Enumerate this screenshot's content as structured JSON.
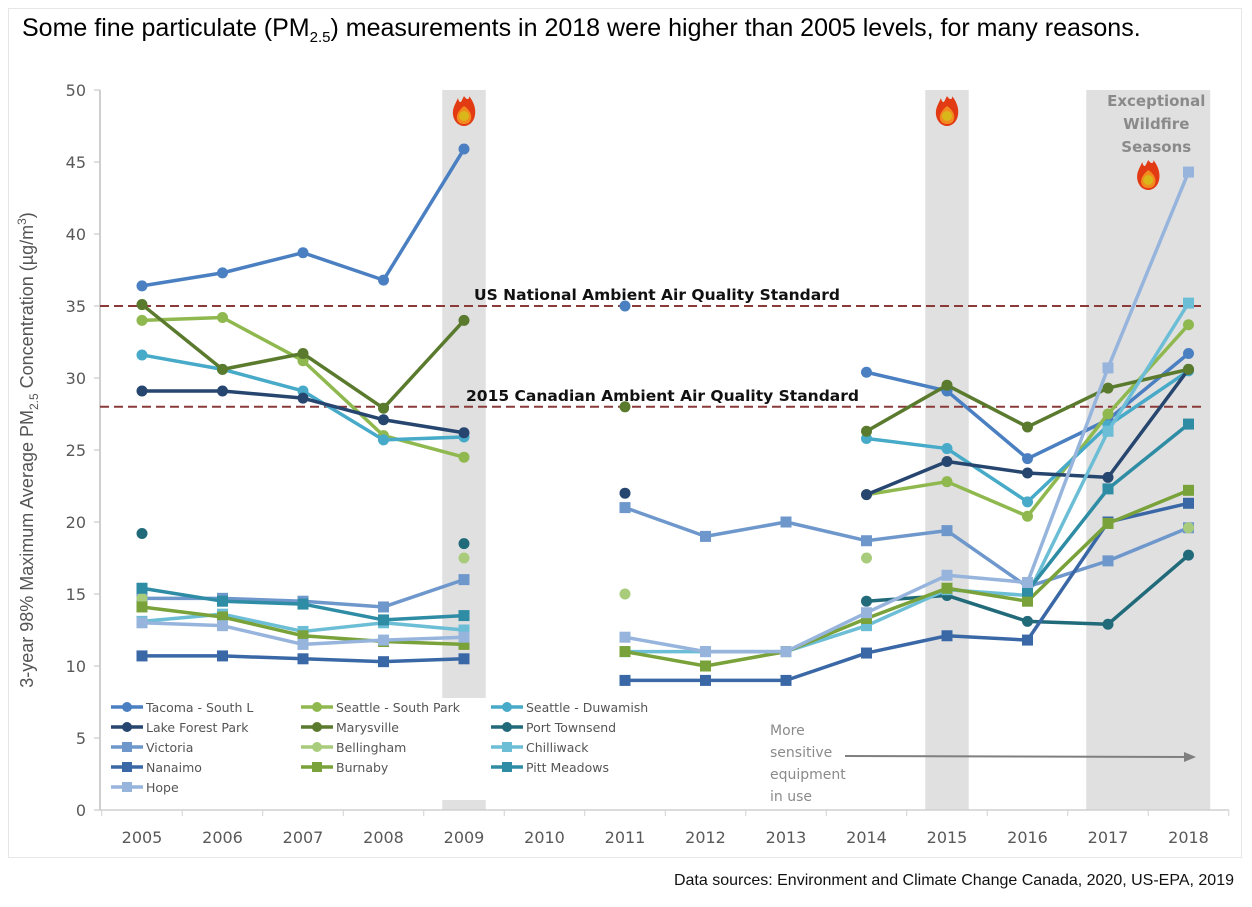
{
  "title": {
    "pre": "Some fine particulate (PM",
    "sub": "2.5",
    "post": ") measurements in 2018 were higher than 2005 levels, for many reasons."
  },
  "source": "Data sources: Environment and Climate Change Canada, 2020, US-EPA, 2019",
  "chart_data": {
    "type": "line",
    "title": "Some fine particulate (PM2.5) measurements in 2018 were higher than 2005 levels, for many reasons.",
    "xlabel": "",
    "ylabel": "3-year 98% Maximum Average PM2.5 Concentration (µg/m³)",
    "ylabel_parts": {
      "pre": "3-year 98% Maximum Average PM",
      "sub": "2.5",
      "mid": " Concentration  (µg/m",
      "sup": "3",
      "post": ")"
    },
    "x": [
      "2005",
      "2006",
      "2007",
      "2008",
      "2009",
      "2010",
      "2011",
      "2012",
      "2013",
      "2014",
      "2015",
      "2016",
      "2017",
      "2018"
    ],
    "ylim": [
      0,
      50
    ],
    "yticks": [
      0,
      5,
      10,
      15,
      20,
      25,
      30,
      35,
      40,
      45,
      50
    ],
    "grid": false,
    "legend_position": "bottom-left",
    "reference_lines": [
      {
        "label": "US National Ambient Air Quality Standard",
        "value": 35,
        "color": "#8b3a3a"
      },
      {
        "label": "2015 Canadian Ambient Air Quality Standard",
        "value": 28,
        "color": "#8b3a3a"
      }
    ],
    "shaded_periods": [
      {
        "years": [
          "2009"
        ],
        "label": "",
        "icon": "fire-icon"
      },
      {
        "years": [
          "2015"
        ],
        "label": "",
        "icon": "fire-icon"
      },
      {
        "years": [
          "2017",
          "2018"
        ],
        "label": "Exceptional Wildfire Seasons",
        "icon": "fire-icon"
      }
    ],
    "annotations": [
      {
        "text": [
          "More",
          "sensitive",
          "equipment",
          " in use"
        ],
        "arrow_from": "2014",
        "arrow_to": "2018"
      }
    ],
    "series": [
      {
        "name": "Tacoma - South L",
        "marker": "circle",
        "color": "#4a7fc1",
        "values": [
          36.4,
          37.3,
          38.7,
          36.8,
          45.9,
          null,
          35.0,
          null,
          null,
          30.4,
          29.1,
          24.4,
          27.1,
          31.7
        ]
      },
      {
        "name": "Seattle - South Park",
        "marker": "circle",
        "color": "#8fb84e",
        "values": [
          34.0,
          34.2,
          31.2,
          26.0,
          24.5,
          null,
          null,
          null,
          null,
          21.9,
          22.8,
          20.4,
          27.5,
          33.7
        ]
      },
      {
        "name": "Seattle - Duwamish",
        "marker": "circle",
        "color": "#46aac8",
        "values": [
          31.6,
          30.6,
          29.1,
          25.7,
          25.9,
          null,
          null,
          null,
          null,
          25.8,
          25.1,
          21.4,
          26.7,
          30.5
        ]
      },
      {
        "name": "Lake Forest Park",
        "marker": "circle",
        "color": "#27466f",
        "values": [
          29.1,
          29.1,
          28.6,
          27.1,
          26.2,
          null,
          22.0,
          null,
          null,
          21.9,
          24.2,
          23.4,
          23.1,
          30.6
        ]
      },
      {
        "name": "Marysville",
        "marker": "circle",
        "color": "#5a7a2e",
        "values": [
          35.1,
          30.6,
          31.7,
          27.9,
          34.0,
          null,
          28.0,
          null,
          null,
          26.3,
          29.5,
          26.6,
          29.3,
          30.6
        ]
      },
      {
        "name": "Port Townsend",
        "marker": "circle",
        "color": "#216a7a",
        "values": [
          19.2,
          null,
          null,
          null,
          18.5,
          null,
          null,
          null,
          null,
          14.5,
          14.9,
          13.1,
          12.9,
          17.7
        ]
      },
      {
        "name": "Victoria",
        "marker": "square",
        "color": "#6e97cc",
        "values": [
          14.7,
          14.7,
          14.5,
          14.1,
          16.0,
          null,
          21.0,
          19.0,
          20.0,
          18.7,
          19.4,
          15.5,
          17.3,
          19.6
        ]
      },
      {
        "name": "Bellingham",
        "marker": "circle",
        "color": "#a9cc7c",
        "values": [
          14.7,
          null,
          null,
          null,
          17.5,
          null,
          15.0,
          null,
          null,
          17.5,
          null,
          null,
          null,
          19.6
        ]
      },
      {
        "name": "Chilliwack",
        "marker": "square",
        "color": "#6cbed6",
        "values": [
          13.1,
          13.6,
          12.4,
          13.0,
          12.5,
          null,
          11.0,
          11.0,
          11.0,
          12.8,
          15.3,
          14.9,
          26.3,
          35.2
        ]
      },
      {
        "name": "Nanaimo",
        "marker": "square",
        "color": "#3a68a6",
        "values": [
          10.7,
          10.7,
          10.5,
          10.3,
          10.5,
          null,
          9.0,
          9.0,
          9.0,
          10.9,
          12.1,
          11.8,
          20.0,
          21.3
        ]
      },
      {
        "name": "Burnaby",
        "marker": "square",
        "color": "#79a23a",
        "values": [
          14.1,
          13.4,
          12.1,
          11.7,
          11.5,
          null,
          11.0,
          10.0,
          11.0,
          13.3,
          15.4,
          14.5,
          19.9,
          22.2
        ]
      },
      {
        "name": "Pitt Meadows",
        "marker": "square",
        "color": "#2e8ca4",
        "values": [
          15.4,
          14.5,
          14.3,
          13.2,
          13.5,
          null,
          null,
          null,
          null,
          null,
          null,
          15.2,
          22.3,
          26.8
        ]
      },
      {
        "name": "Hope",
        "marker": "square",
        "color": "#96b4dc",
        "values": [
          13.0,
          12.8,
          11.5,
          11.8,
          12.0,
          null,
          12.0,
          11.0,
          11.0,
          13.7,
          16.3,
          15.8,
          30.7,
          44.3
        ]
      }
    ]
  }
}
